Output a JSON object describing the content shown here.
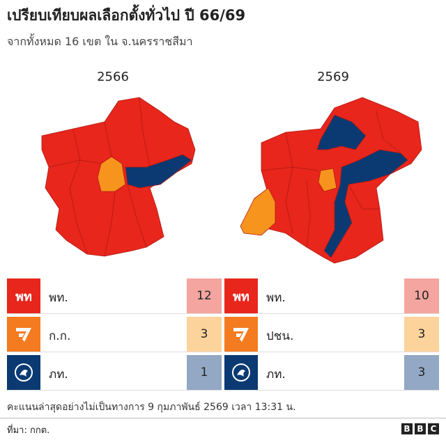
{
  "header": {
    "title": "เปรียบเทียบผลเลือกตั้งทั่วไป ปี 66/69",
    "subtitle": "จากทั้งหมด 16 เขต ใน จ.นครราชสีมา"
  },
  "maps": [
    {
      "year": "2566"
    },
    {
      "year": "2569"
    }
  ],
  "tables": [
    {
      "rows": [
        {
          "logo": "พท",
          "party": "พท.",
          "seats": 12
        },
        {
          "party": "ก.ก.",
          "seats": 3
        },
        {
          "party": "ภท.",
          "seats": 1
        }
      ]
    },
    {
      "rows": [
        {
          "logo": "พท",
          "party": "พท.",
          "seats": 10
        },
        {
          "party": "ปชน.",
          "seats": 3
        },
        {
          "party": "ภท.",
          "seats": 3
        }
      ]
    }
  ],
  "footer": {
    "note": "คะแนนล่าสุดอย่างไม่เป็นทางการ 9 กุมภาพันธ์ 2569 เวลา 13:31 น.",
    "source": "ที่มา: กกต.",
    "brand": [
      "B",
      "B",
      "C"
    ]
  }
}
